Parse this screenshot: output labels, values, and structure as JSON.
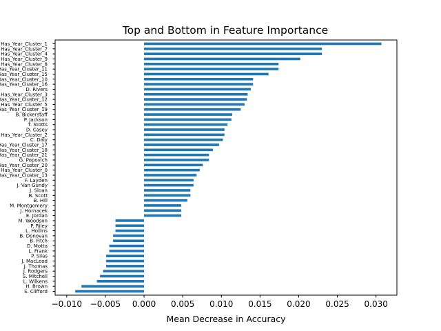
{
  "chart_data": {
    "type": "bar",
    "orientation": "horizontal",
    "title": "Top and Bottom in Feature Importance",
    "xlabel": "Mean Decrease in Accuracy",
    "ylabel": "",
    "xlim": [
      -0.0115,
      0.0327
    ],
    "xticks": [
      -0.01,
      -0.005,
      0.0,
      0.005,
      0.01,
      0.015,
      0.02,
      0.025,
      0.03
    ],
    "xtick_labels": [
      "−0.010",
      "−0.005",
      "0.000",
      "0.005",
      "0.010",
      "0.015",
      "0.020",
      "0.025",
      "0.030"
    ],
    "bar_color": "#1f77b4",
    "grid": false,
    "categories": [
      "Has_Year_Cluster_1",
      "Has_Year_Cluster_7",
      "Has_Year_Cluster_4",
      "Has_Year_Cluster_9",
      "Has_Year_Cluster_8",
      "Has_Year_Cluster_11",
      "Has_Year_Cluster_15",
      "Has_Year_Cluster_10",
      "Has_Year_Cluster_16",
      "D. Rivers",
      "Has_Year_Cluster_3",
      "Has_Year_Cluster_12",
      "Has_Year_Cluster_5",
      "Has_Year_Cluster_19",
      "B. Bickerstaff",
      "P. Jackson",
      "T. Stotts",
      "D. Casey",
      "Has_Year_Cluster_2",
      "C. Daly",
      "Has_Year_Cluster_17",
      "Has_Year_Cluster_18",
      "Has_Year_Cluster_21",
      "G. Popovich",
      "Has_Year_Cluster_20",
      "Has_Year_Cluster_0",
      "Has_Year_Cluster_13",
      "F. Layden",
      "J. Van Gundy",
      "J. Sloan",
      "B. Scott",
      "B. Hill",
      "M. Montgomery",
      "J. Hornacek",
      "E. Jordan",
      "M. Woodson",
      "P. Riley",
      "L. Hollins",
      "B. Donovan",
      "B. Fitch",
      "D. Motta",
      "L. Frank",
      "P. Silas",
      "J. MacLeod",
      "J. Thomas",
      "J. Rodgers",
      "S. Mitchell",
      "L. Wilkens",
      "H. Brown",
      "S. Clifford"
    ],
    "values": [
      0.0307,
      0.023,
      0.023,
      0.0202,
      0.0174,
      0.0174,
      0.0161,
      0.0141,
      0.0141,
      0.0138,
      0.0134,
      0.0133,
      0.013,
      0.0125,
      0.0114,
      0.0113,
      0.0108,
      0.0104,
      0.0104,
      0.0102,
      0.0097,
      0.0089,
      0.0084,
      0.0084,
      0.0076,
      0.0072,
      0.0068,
      0.0064,
      0.0064,
      0.006,
      0.006,
      0.0056,
      0.0048,
      0.0048,
      0.0048,
      -0.0037,
      -0.0037,
      -0.0037,
      -0.004,
      -0.004,
      -0.0045,
      -0.0045,
      -0.0049,
      -0.0049,
      -0.0049,
      -0.0053,
      -0.0057,
      -0.0061,
      -0.0081,
      -0.0089
    ]
  }
}
